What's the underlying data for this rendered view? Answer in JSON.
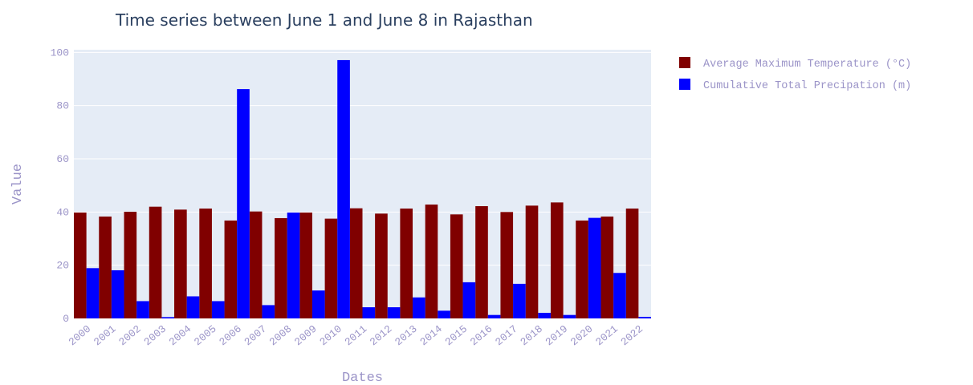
{
  "chart_data": {
    "type": "bar",
    "title": "Time series between June 1 and June 8 in Rajasthan",
    "xlabel": "Dates",
    "ylabel": "Value",
    "categories": [
      "2000",
      "2001",
      "2002",
      "2003",
      "2004",
      "2005",
      "2006",
      "2007",
      "2008",
      "2009",
      "2010",
      "2011",
      "2012",
      "2013",
      "2014",
      "2015",
      "2016",
      "2017",
      "2018",
      "2019",
      "2020",
      "2021",
      "2022"
    ],
    "ylim": [
      0,
      101
    ],
    "yticks": [
      0,
      20,
      40,
      60,
      80,
      100
    ],
    "grid": true,
    "legend_position": "top-right",
    "background_color": "#e5ecf6",
    "axis_text_color": "#9b94c8",
    "series": [
      {
        "name": "Average Maximum Temperature (°C)",
        "color": "#800000",
        "values": [
          39.8,
          38.3,
          40.1,
          42.0,
          40.9,
          41.3,
          36.8,
          40.2,
          37.7,
          39.8,
          37.5,
          41.4,
          39.4,
          41.3,
          42.8,
          39.1,
          42.2,
          40.0,
          42.4,
          43.6,
          36.8,
          38.3,
          41.3
        ]
      },
      {
        "name": "Cumulative Total Precipation (m)",
        "color": "#0000ff",
        "values": [
          18.9,
          18.1,
          6.5,
          0.5,
          8.3,
          6.5,
          86.2,
          5.0,
          39.8,
          10.5,
          97.1,
          4.2,
          4.2,
          7.9,
          2.9,
          13.6,
          1.3,
          13.0,
          2.1,
          1.3,
          37.8,
          17.1,
          0.6
        ]
      }
    ]
  }
}
